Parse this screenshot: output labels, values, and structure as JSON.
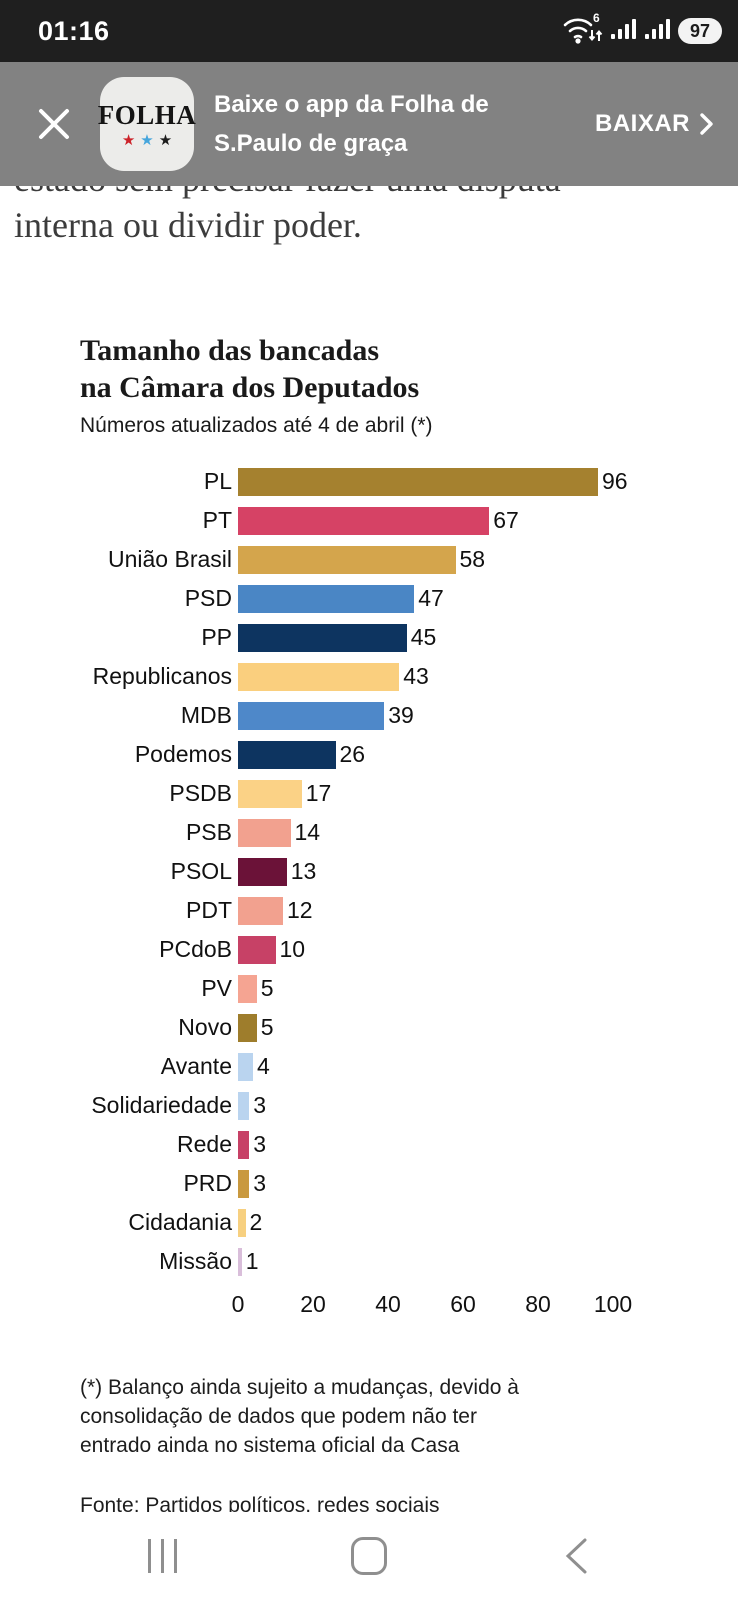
{
  "status_bar": {
    "time": "01:16",
    "battery": "97"
  },
  "banner": {
    "app_name": "FOLHA",
    "stars": [
      "red",
      "blue",
      "black"
    ],
    "line1": "Baixe o app da Folha de",
    "line2": "S.Paulo de graça",
    "cta": "BAIXAR"
  },
  "article": {
    "line1": "estado sem precisar fazer uma disputa",
    "line2": "interna ou dividir poder."
  },
  "chart_data": {
    "type": "bar",
    "orientation": "horizontal",
    "title_line1": "Tamanho das bancadas",
    "title_line2": "na Câmara dos Deputados",
    "subtitle": "Números atualizados até 4 de abril (*)",
    "categories": [
      "PL",
      "PT",
      "União Brasil",
      "PSD",
      "PP",
      "Republicanos",
      "MDB",
      "Podemos",
      "PSDB",
      "PSB",
      "PSOL",
      "PDT",
      "PCdoB",
      "PV",
      "Novo",
      "Avante",
      "Solidariedade",
      "Rede",
      "PRD",
      "Cidadania",
      "Missão"
    ],
    "values": [
      96,
      67,
      58,
      47,
      45,
      43,
      39,
      26,
      17,
      14,
      13,
      12,
      10,
      5,
      5,
      4,
      3,
      3,
      3,
      2,
      1
    ],
    "bar_colors": [
      "#A5812F",
      "#D64265",
      "#D4A54C",
      "#4A86C5",
      "#0D3460",
      "#FACF7E",
      "#4E88C9",
      "#0D3460",
      "#FBD286",
      "#F2A18F",
      "#6B1238",
      "#F2A18F",
      "#C74166",
      "#F5A492",
      "#9E7D2C",
      "#BAD4EF",
      "#BAD4EF",
      "#C74166",
      "#C9993F",
      "#F7D080",
      "#D9BEDA"
    ],
    "xlim": [
      0,
      100
    ],
    "x_ticks": [
      0,
      20,
      40,
      60,
      80,
      100
    ],
    "grid": false,
    "legend": "none",
    "footnote": "(*) Balanço ainda sujeito a mudanças, devido à consolidação de dados que podem não ter entrado ainda no sistema oficial da Casa",
    "source": "Fonte: Partidos políticos, redes sociais"
  },
  "colors": {
    "statusbar_bg": "#1F1F1F",
    "banner_bg": "#828282",
    "nav_icon": "#8F8F8F",
    "text_dark": "#1A1A1A"
  }
}
